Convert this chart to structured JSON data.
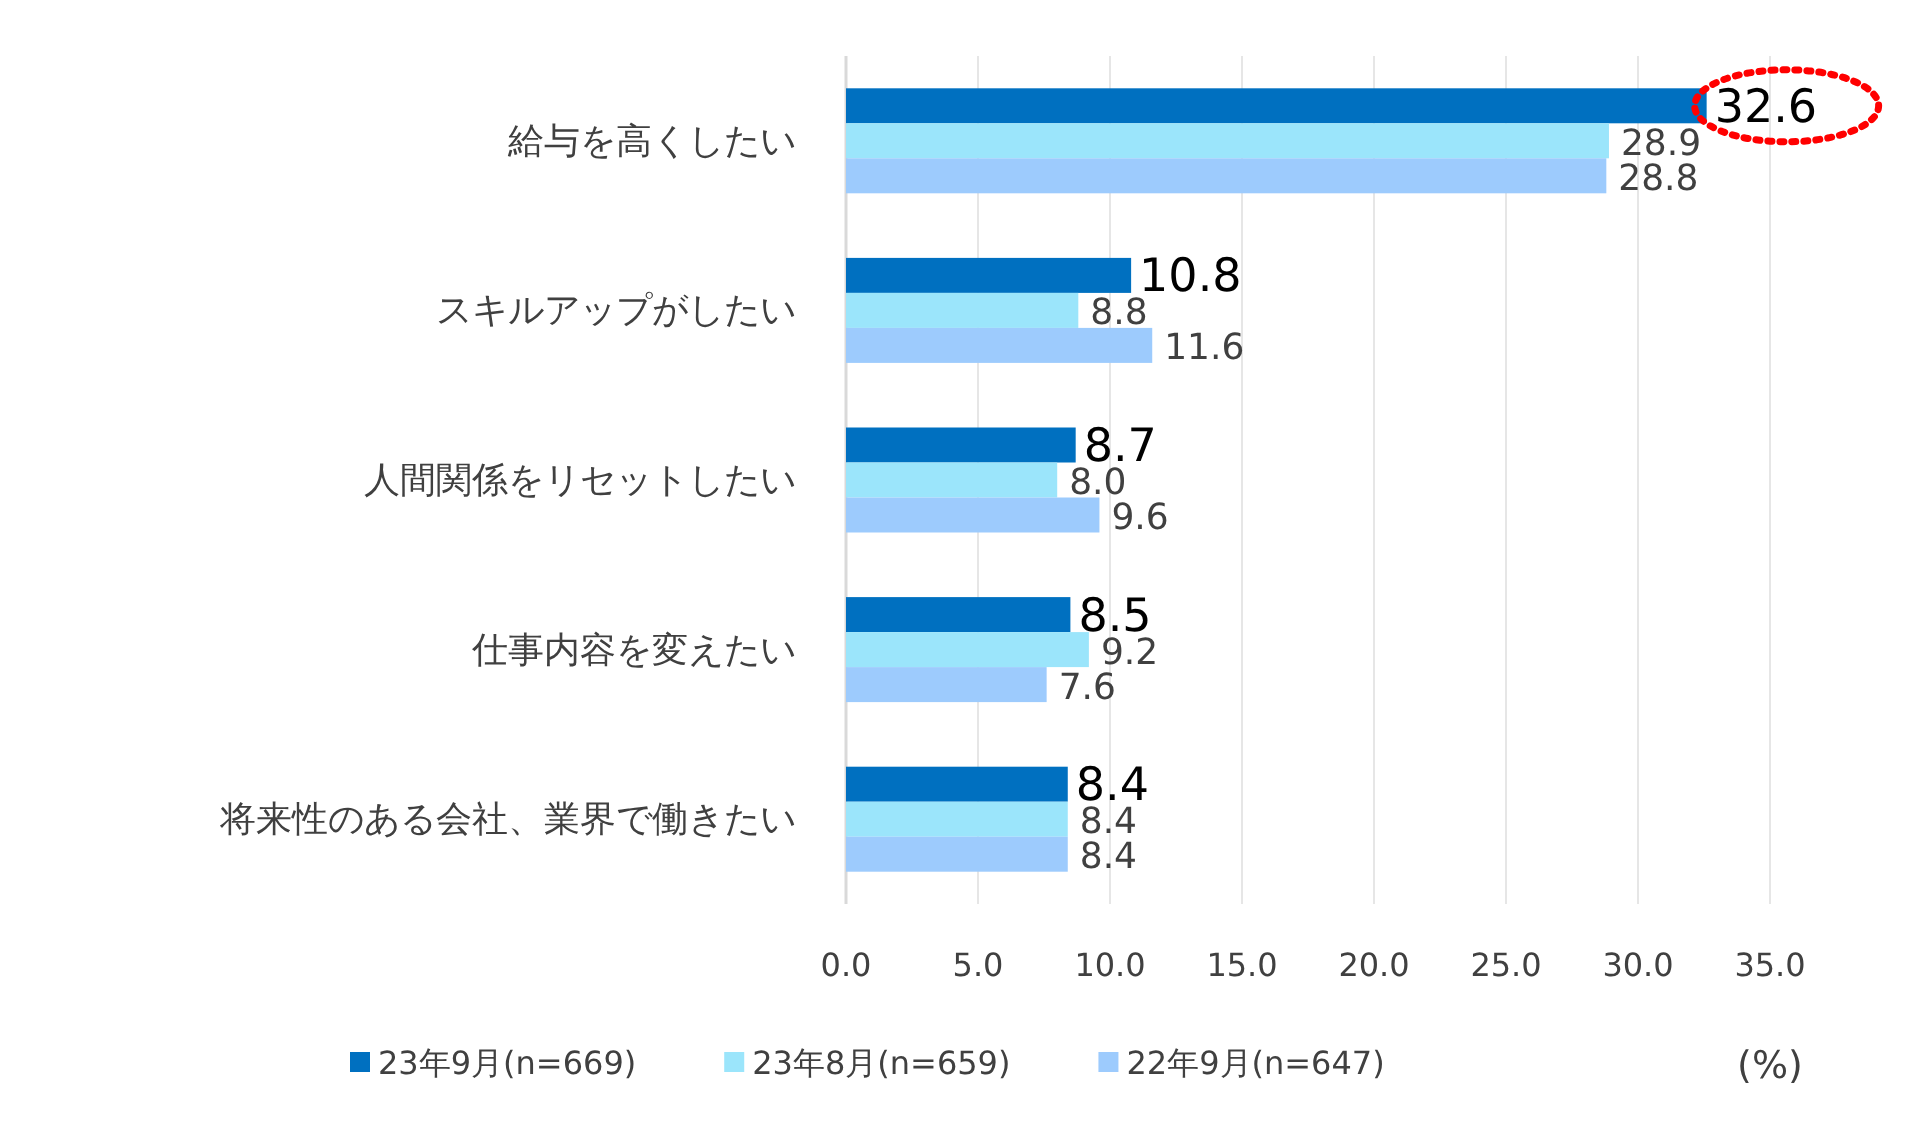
{
  "chart_data": {
    "type": "bar",
    "orientation": "horizontal",
    "xlabel": "(%)",
    "categories": [
      "給与を高くしたい",
      "スキルアップがしたい",
      "人間関係をリセットしたい",
      "仕事内容を変えたい",
      "将来性のある会社、業界で働きたい"
    ],
    "series": [
      {
        "name": "23年9月(n=669)",
        "color": "#0070c0",
        "values": [
          32.6,
          10.8,
          8.7,
          8.5,
          8.4
        ],
        "value_labels": [
          "32.6",
          "10.8",
          "8.7",
          "8.5",
          "8.4"
        ]
      },
      {
        "name": "23年8月(n=659)",
        "color": "#9be5fb",
        "values": [
          28.9,
          8.8,
          8.0,
          9.2,
          8.4
        ],
        "value_labels": [
          "28.9",
          "8.8",
          "8.0",
          "9.2",
          "8.4"
        ]
      },
      {
        "name": "22年9月(n=647)",
        "color": "#9dcbfd",
        "values": [
          28.8,
          11.6,
          9.6,
          7.6,
          8.4
        ],
        "value_labels": [
          "28.8",
          "11.6",
          "9.6",
          "7.6",
          "8.4"
        ]
      }
    ],
    "xlim": [
      0,
      35
    ],
    "xticks": [
      {
        "value": 0,
        "label": "0.0"
      },
      {
        "value": 5,
        "label": "5.0"
      },
      {
        "value": 10,
        "label": "10.0"
      },
      {
        "value": 15,
        "label": "15.0"
      },
      {
        "value": 20,
        "label": "20.0"
      },
      {
        "value": 25,
        "label": "25.0"
      },
      {
        "value": 30,
        "label": "30.0"
      },
      {
        "value": 35,
        "label": "35.0"
      }
    ],
    "grid": "x",
    "legend": "bottom"
  }
}
